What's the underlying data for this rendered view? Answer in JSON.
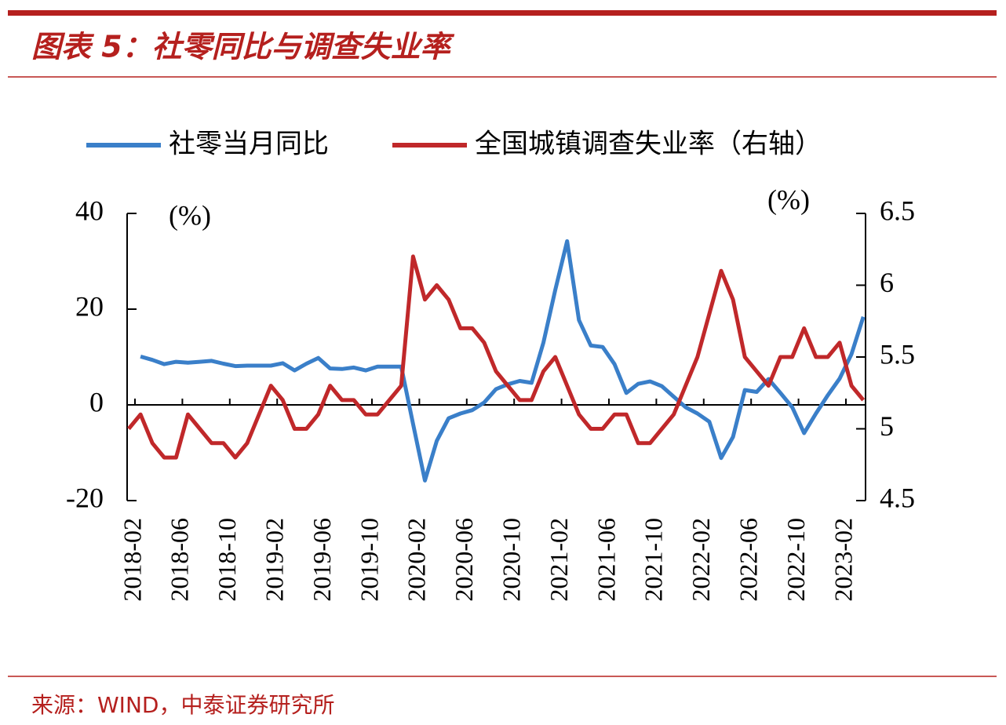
{
  "chart_data": {
    "type": "line",
    "title": "图表 5：社零同比与调查失业率",
    "source": "来源：WIND，中泰证券研究所",
    "y_unit": "(%)",
    "y2_unit": "(%)",
    "categories": [
      "2018-02",
      null,
      null,
      null,
      "2018-06",
      null,
      null,
      null,
      "2018-10",
      null,
      null,
      null,
      "2019-02",
      null,
      null,
      null,
      "2019-06",
      null,
      null,
      null,
      "2019-10",
      null,
      null,
      null,
      "2020-02",
      null,
      null,
      null,
      "2020-06",
      null,
      null,
      null,
      "2020-10",
      null,
      null,
      null,
      "2021-02",
      null,
      null,
      null,
      "2021-06",
      null,
      null,
      null,
      "2021-10",
      null,
      null,
      null,
      "2022-02",
      null,
      null,
      null,
      "2022-06",
      null,
      null,
      null,
      "2022-10",
      null,
      null,
      null,
      "2023-02",
      null,
      null
    ],
    "series": [
      {
        "name": "社零当月同比",
        "color": "#3a7fc9",
        "axis": "y",
        "values": [
          null,
          10.1,
          9.4,
          8.5,
          9.0,
          8.8,
          9.0,
          9.2,
          8.6,
          8.1,
          8.2,
          8.2,
          8.2,
          8.7,
          7.2,
          8.6,
          9.8,
          7.6,
          7.5,
          7.8,
          7.2,
          8.0,
          8.0,
          8.0,
          -4,
          -15.8,
          -7.5,
          -2.8,
          -1.8,
          -1.1,
          0.5,
          3.3,
          4.3,
          5.0,
          4.6,
          13,
          24,
          34.2,
          17.7,
          12.4,
          12.1,
          8.5,
          2.5,
          4.4,
          4.9,
          3.9,
          1.7,
          -0.5,
          -1.8,
          -3.5,
          -11.1,
          -6.7,
          3.1,
          2.7,
          5.4,
          2.5,
          -0.5,
          -5.9,
          -1.8,
          2,
          5.5,
          10.6,
          18.4
        ]
      },
      {
        "name": "全国城镇调查失业率（右轴）",
        "color": "#c0282a",
        "axis": "y2",
        "values": [
          5.0,
          5.1,
          4.9,
          4.8,
          4.8,
          5.1,
          5.0,
          4.9,
          4.9,
          4.8,
          4.9,
          5.1,
          5.3,
          5.2,
          5.0,
          5.0,
          5.1,
          5.3,
          5.2,
          5.2,
          5.1,
          5.1,
          5.2,
          5.3,
          6.2,
          5.9,
          6.0,
          5.9,
          5.7,
          5.7,
          5.6,
          5.4,
          5.3,
          5.2,
          5.2,
          5.4,
          5.5,
          5.3,
          5.1,
          5.0,
          5.0,
          5.1,
          5.1,
          4.9,
          4.9,
          5.0,
          5.1,
          5.3,
          5.5,
          5.8,
          6.1,
          5.9,
          5.5,
          5.4,
          5.3,
          5.5,
          5.5,
          5.7,
          5.5,
          5.5,
          5.6,
          5.3,
          5.2
        ]
      }
    ],
    "ylim": [
      -20,
      40
    ],
    "yticks": [
      -20,
      0,
      20,
      40
    ],
    "y2lim": [
      4.5,
      6.5
    ],
    "y2ticks": [
      4.5,
      5,
      5.5,
      6,
      6.5
    ]
  }
}
